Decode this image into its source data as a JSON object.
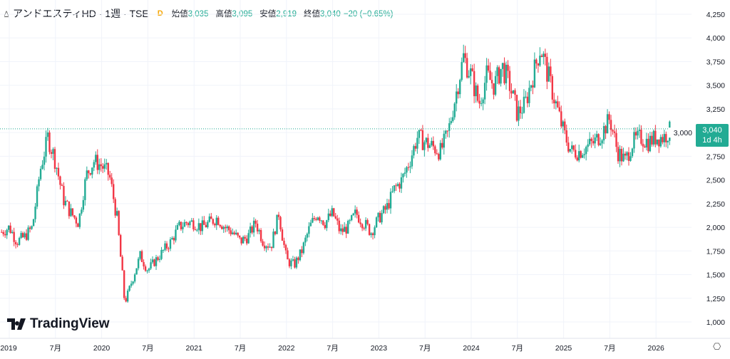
{
  "header": {
    "exchange_icon": "A",
    "symbol": "アンドエスティHD · 1週 · TSE",
    "delay_badge": "D",
    "open_label": "始値",
    "open": "3,035",
    "high_label": "高値",
    "high": "3,095",
    "low_label": "安値",
    "low": "2,919",
    "close_label": "終値",
    "close": "3,040",
    "change": "−20 (−0.65%)"
  },
  "price_label": {
    "price": "3,040",
    "countdown": "1d 4h"
  },
  "logo": "TradingView",
  "settings_icon": "gear-icon",
  "colors": {
    "up": "#22ab94",
    "down": "#f23645",
    "grid": "#f0f3fa",
    "last": "#22ab94"
  },
  "chart_data": {
    "type": "candlestick",
    "interval": "weekly",
    "yticks": [
      1000,
      1250,
      1500,
      1750,
      2000,
      2250,
      2500,
      2750,
      3000,
      3250,
      3500,
      3750,
      4000,
      4250
    ],
    "ytick_labels": [
      "1,000",
      "1,250",
      "1,500",
      "1,750",
      "2,000",
      "2,250",
      "2,500",
      "2,750",
      "3,000",
      "3,250",
      "3,500",
      "3,750",
      "4,000",
      "4,250"
    ],
    "ylim": [
      1000,
      4250
    ],
    "xticks": [
      {
        "t": 2019.0,
        "label": "2019"
      },
      {
        "t": 2019.5,
        "label": "7月"
      },
      {
        "t": 2020.0,
        "label": "2020"
      },
      {
        "t": 2020.5,
        "label": "7月"
      },
      {
        "t": 2021.0,
        "label": "2021"
      },
      {
        "t": 2021.5,
        "label": "7月"
      },
      {
        "t": 2022.0,
        "label": "2022"
      },
      {
        "t": 2022.5,
        "label": "7月"
      },
      {
        "t": 2023.0,
        "label": "2023"
      },
      {
        "t": 2023.5,
        "label": "7月"
      },
      {
        "t": 2024.0,
        "label": "2024"
      },
      {
        "t": 2024.5,
        "label": "7月"
      },
      {
        "t": 2025.0,
        "label": "2025"
      },
      {
        "t": 2025.5,
        "label": "7月"
      },
      {
        "t": 2026.0,
        "label": "2026"
      }
    ],
    "start": "2018-12",
    "monthly_close_approx": [
      1950,
      2000,
      1850,
      1900,
      2000,
      2600,
      2950,
      2700,
      2300,
      2150,
      2050,
      2550,
      2700,
      2650,
      2550,
      2100,
      1200,
      1450,
      1700,
      1550,
      1650,
      1750,
      1850,
      2000,
      2050,
      2050,
      2000,
      2050,
      2100,
      2000,
      1950,
      1850,
      1900,
      2050,
      1850,
      1800,
      2150,
      1650,
      1600,
      1750,
      2000,
      2150,
      2050,
      2150,
      1950,
      2000,
      2150,
      2050,
      1950,
      2100,
      2200,
      2400,
      2500,
      2700,
      2950,
      2900,
      2850,
      2800,
      3000,
      3400,
      3800,
      3600,
      3300,
      3600,
      3500,
      3700,
      3500,
      3200,
      3300,
      3600,
      3900,
      3600,
      3300,
      3000,
      2800,
      2800,
      2850,
      2900,
      3000,
      3150,
      2800,
      2700,
      2900,
      2950,
      2900,
      2950,
      2950,
      3040
    ],
    "last_price": 3040
  }
}
